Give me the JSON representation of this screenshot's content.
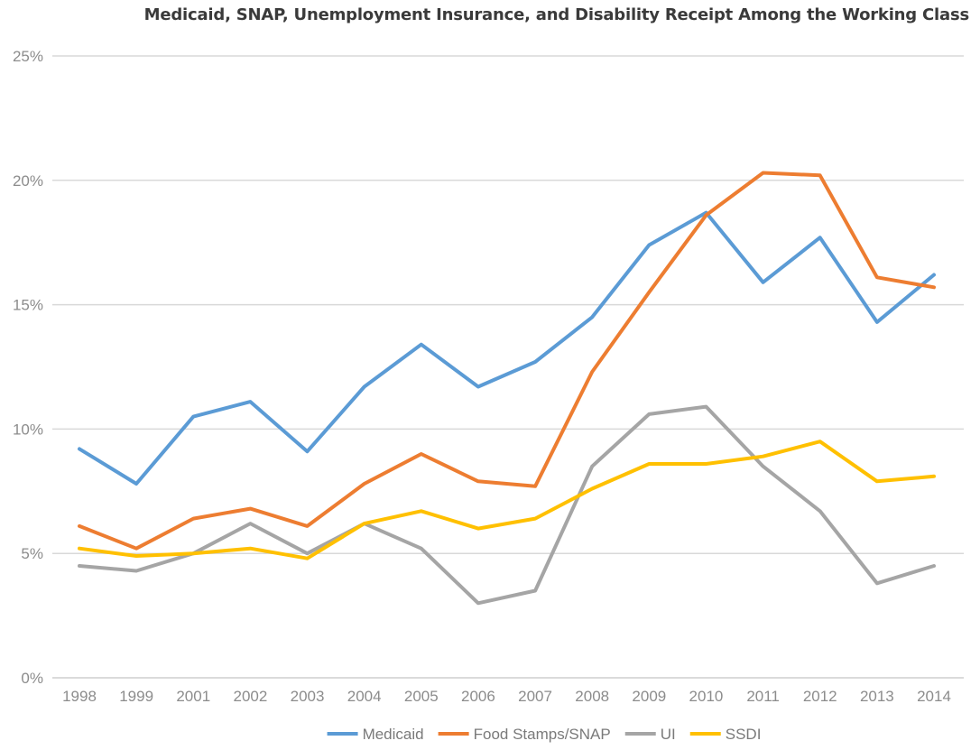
{
  "chart_data": {
    "type": "line",
    "title": "Medicaid, SNAP, Unemployment Insurance, and Disability Receipt Among the Working Class",
    "xlabel": "",
    "ylabel": "",
    "categories": [
      "1998",
      "1999",
      "2001",
      "2002",
      "2003",
      "2004",
      "2005",
      "2006",
      "2007",
      "2008",
      "2009",
      "2010",
      "2011",
      "2012",
      "2013",
      "2014"
    ],
    "ylim": [
      0,
      25
    ],
    "yticks": [
      "0%",
      "5%",
      "10%",
      "15%",
      "20%",
      "25%"
    ],
    "grid": "horizontal",
    "legend_position": "bottom",
    "series": [
      {
        "name": "Medicaid",
        "color": "#5B9BD5",
        "values": [
          9.2,
          7.8,
          10.5,
          11.1,
          9.1,
          11.7,
          13.4,
          11.7,
          12.7,
          14.5,
          17.4,
          18.7,
          15.9,
          17.7,
          14.3,
          16.2
        ]
      },
      {
        "name": "Food Stamps/SNAP",
        "color": "#ED7D31",
        "values": [
          6.1,
          5.2,
          6.4,
          6.8,
          6.1,
          7.8,
          9.0,
          7.9,
          7.7,
          12.3,
          15.5,
          18.6,
          20.3,
          20.2,
          16.1,
          15.7
        ]
      },
      {
        "name": "UI",
        "color": "#A5A5A5",
        "values": [
          4.5,
          4.3,
          5.0,
          6.2,
          5.0,
          6.2,
          5.2,
          3.0,
          3.5,
          8.5,
          10.6,
          10.9,
          8.5,
          6.7,
          3.8,
          4.5
        ]
      },
      {
        "name": "SSDI",
        "color": "#FFC000",
        "values": [
          5.2,
          4.9,
          5.0,
          5.2,
          4.8,
          6.2,
          6.7,
          6.0,
          6.4,
          7.6,
          8.6,
          8.6,
          8.9,
          9.5,
          7.9,
          8.1
        ]
      }
    ]
  }
}
